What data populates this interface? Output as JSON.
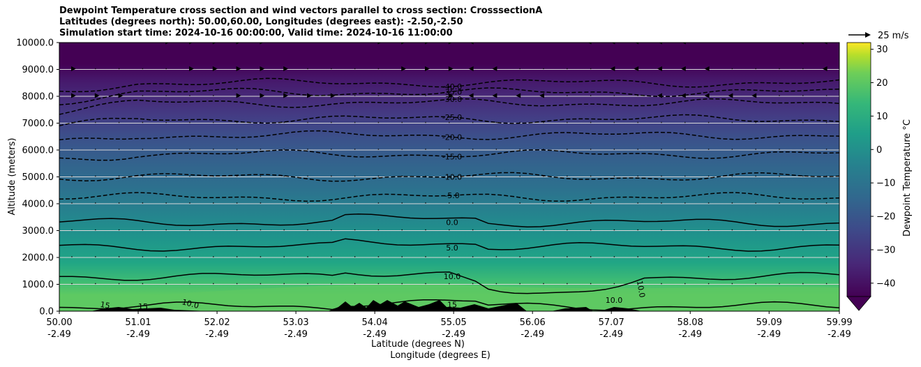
{
  "chart_data": {
    "type": "contourf",
    "title_lines": [
      "Dewpoint Temperature cross section and wind vectors parallel to cross section: CrosssectionA",
      "Latitudes (degrees north): 50.00,60.00, Longitudes (degrees east): -2.50,-2.50",
      "Simulation start time: 2024-10-16 00:00:00, Valid time: 2024-10-16 11:00:00"
    ],
    "ylabel": "Altitude (meters)",
    "xlabel_lat": "Latitude (degrees N)",
    "xlabel_lon": "Longitude (degrees E)",
    "ylim": [
      0,
      10000
    ],
    "y_ticks": [
      "0.0",
      "1000.0",
      "2000.0",
      "3000.0",
      "4000.0",
      "5000.0",
      "6000.0",
      "7000.0",
      "8000.0",
      "9000.0",
      "10000.0"
    ],
    "y_tick_values": [
      0,
      1000,
      2000,
      3000,
      4000,
      5000,
      6000,
      7000,
      8000,
      9000,
      10000
    ],
    "xlim": [
      50.0,
      59.99
    ],
    "x_tick_values": [
      50.0,
      51.01,
      52.02,
      53.03,
      54.04,
      55.05,
      56.06,
      57.07,
      58.08,
      59.09,
      59.99
    ],
    "x_ticks_lat": [
      "50.00",
      "51.01",
      "52.02",
      "53.03",
      "54.04",
      "55.05",
      "56.06",
      "57.07",
      "58.08",
      "59.09",
      "59.99"
    ],
    "x_ticks_lon": [
      "-2.49",
      "-2.49",
      "-2.49",
      "-2.49",
      "-2.49",
      "-2.49",
      "-2.49",
      "-2.49",
      "-2.49",
      "-2.49",
      "-2.49"
    ],
    "grid_y": true,
    "colorbar": {
      "label": "Dewpoint Temperature $^\\circ$C",
      "label_text": "Dewpoint Temperature °C",
      "range": [
        -44,
        32
      ],
      "ticks": [
        "−40",
        "−30",
        "−20",
        "−10",
        "0",
        "10",
        "20",
        "30"
      ],
      "tick_values": [
        -40,
        -30,
        -20,
        -10,
        0,
        10,
        20,
        30
      ],
      "extend": "min",
      "colormap": "viridis"
    },
    "contour_levels": [
      {
        "value": -40,
        "label": "-40.0",
        "altitude_m": 8500,
        "dashed": true
      },
      {
        "value": -35,
        "label": "-35.0",
        "altitude_m": 8150,
        "dashed": true
      },
      {
        "value": -30,
        "label": "-30.0",
        "altitude_m": 7750,
        "dashed": true
      },
      {
        "value": -25,
        "label": "-25.0",
        "altitude_m": 7150,
        "dashed": true
      },
      {
        "value": -20,
        "label": "-20.0",
        "altitude_m": 6550,
        "dashed": true
      },
      {
        "value": -15,
        "label": "-15.0",
        "altitude_m": 5850,
        "dashed": true
      },
      {
        "value": -10,
        "label": "-10.0",
        "altitude_m": 5000,
        "dashed": true
      },
      {
        "value": -5,
        "label": "-5.0",
        "altitude_m": 4250,
        "dashed": true
      },
      {
        "value": 0,
        "label": "0.0",
        "altitude_m": 3300,
        "dashed": false
      },
      {
        "value": 5,
        "label": "5.0",
        "altitude_m": 2400,
        "dashed": false
      },
      {
        "value": 10,
        "label": "10.0",
        "altitude_m": 1300,
        "dashed": false
      },
      {
        "value": 15,
        "label": "15",
        "altitude_m": 180,
        "dashed": false
      }
    ],
    "extra_contour_labels": [
      "15",
      "15",
      "10.0",
      "10.0",
      "10.0"
    ],
    "wind_reference": {
      "label": "25 m/s",
      "speed_ms": 25
    }
  }
}
